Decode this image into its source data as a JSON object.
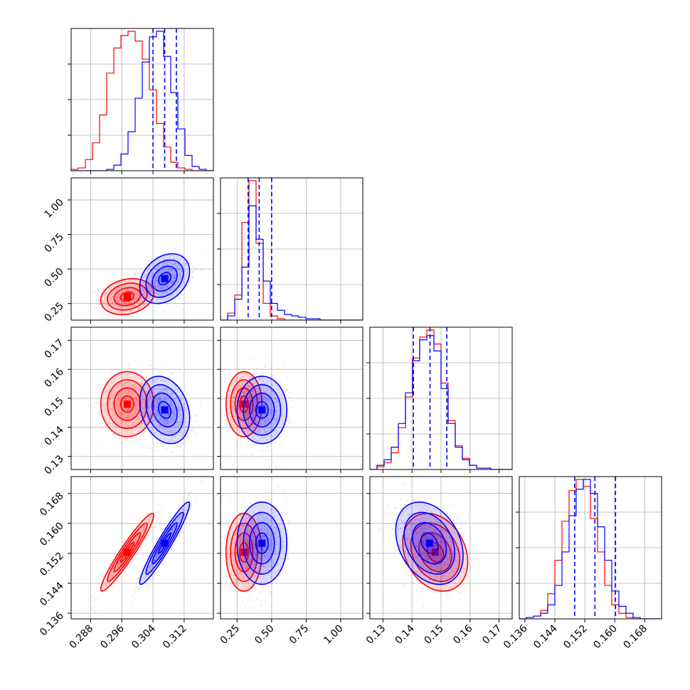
{
  "chart_data": {
    "type": "scatter",
    "subtype": "corner-plot",
    "grid": true,
    "colors": {
      "model_a": "#ff0000",
      "model_b": "#0000ff"
    },
    "parameters": [
      {
        "range": [
          0.283,
          0.3195
        ],
        "ticks": [
          "0.288",
          "0.296",
          "0.304",
          "0.312"
        ],
        "tick_values": [
          0.288,
          0.296,
          0.304,
          0.312
        ]
      },
      {
        "range": [
          0.13,
          1.16
        ],
        "ticks": [
          "0.25",
          "0.50",
          "0.75",
          "1.00"
        ],
        "tick_values": [
          0.25,
          0.5,
          0.75,
          1.0
        ]
      },
      {
        "range": [
          0.1255,
          0.1745
        ],
        "ticks": [
          "0.13",
          "0.14",
          "0.15",
          "0.16",
          "0.17"
        ],
        "tick_values": [
          0.13,
          0.14,
          0.15,
          0.16,
          0.17
        ]
      },
      {
        "range": [
          0.1345,
          0.1725
        ],
        "ticks": [
          "0.136",
          "0.144",
          "0.152",
          "0.160",
          "0.168"
        ],
        "tick_values": [
          0.136,
          0.144,
          0.152,
          0.16,
          0.168
        ]
      }
    ],
    "series": [
      {
        "color": "#ff0000",
        "mean": [
          0.2974,
          0.3,
          0.148,
          0.1523
        ],
        "std": [
          0.0034,
          0.065,
          0.0056,
          0.0052
        ],
        "correlation": [
          [
            1.0,
            0.2,
            0.0,
            0.95
          ],
          [
            0.2,
            1.0,
            0.0,
            0.0
          ],
          [
            0.0,
            0.0,
            1.0,
            -0.25
          ],
          [
            0.95,
            0.0,
            -0.25,
            1.0
          ]
        ],
        "histograms": [
          [
            0.01,
            0.02,
            0.08,
            0.2,
            0.4,
            0.7,
            0.88,
            0.97,
            1.0,
            0.93,
            0.8,
            0.58,
            0.34,
            0.17,
            0.06,
            0.02,
            0.01,
            0.0,
            0.0,
            0.0
          ],
          [
            0.0,
            0.05,
            0.18,
            0.7,
            1.0,
            0.55,
            0.12,
            0.03,
            0.01,
            0.0,
            0.0,
            0.0,
            0.0,
            0.0,
            0.0,
            0.0,
            0.0,
            0.0,
            0.0,
            0.0
          ],
          [
            0.0,
            0.02,
            0.05,
            0.12,
            0.3,
            0.52,
            0.8,
            0.95,
            1.0,
            0.9,
            0.62,
            0.35,
            0.17,
            0.08,
            0.03,
            0.01,
            0.01,
            0.0,
            0.0,
            0.0
          ],
          [
            0.0,
            0.01,
            0.02,
            0.06,
            0.18,
            0.42,
            0.7,
            0.92,
            1.0,
            0.95,
            0.72,
            0.48,
            0.24,
            0.1,
            0.04,
            0.01,
            0.0,
            0.0,
            0.0,
            0.0
          ]
        ]
      },
      {
        "color": "#0000ff",
        "mean": [
          0.307,
          0.43,
          0.146,
          0.1547
        ],
        "std": [
          0.0032,
          0.09,
          0.0058,
          0.0055
        ],
        "correlation": [
          [
            1.0,
            0.3,
            -0.25,
            0.95
          ],
          [
            0.3,
            1.0,
            0.0,
            0.0
          ],
          [
            -0.25,
            0.0,
            1.0,
            -0.3
          ],
          [
            0.95,
            0.0,
            -0.3,
            1.0
          ]
        ],
        "histograms": [
          [
            0.0,
            0.0,
            0.0,
            0.0,
            0.0,
            0.01,
            0.04,
            0.12,
            0.28,
            0.52,
            0.78,
            0.96,
            1.0,
            0.82,
            0.56,
            0.3,
            0.11,
            0.03,
            0.01,
            0.0
          ],
          [
            0.0,
            0.03,
            0.15,
            0.38,
            0.82,
            0.58,
            0.28,
            0.12,
            0.07,
            0.04,
            0.03,
            0.02,
            0.01,
            0.01,
            0.0,
            0.0,
            0.0,
            0.0,
            0.0,
            0.0
          ],
          [
            0.0,
            0.03,
            0.07,
            0.16,
            0.33,
            0.55,
            0.78,
            0.93,
            0.96,
            0.85,
            0.58,
            0.33,
            0.16,
            0.07,
            0.03,
            0.01,
            0.01,
            0.0,
            0.0,
            0.0
          ],
          [
            0.0,
            0.01,
            0.02,
            0.04,
            0.1,
            0.24,
            0.48,
            0.74,
            0.93,
            1.0,
            0.9,
            0.66,
            0.42,
            0.2,
            0.09,
            0.04,
            0.01,
            0.0,
            0.0,
            0.0
          ]
        ],
        "quantiles": [
          [
            0.304,
            0.307,
            0.31
          ],
          [
            0.33,
            0.41,
            0.5
          ],
          [
            0.1405,
            0.1462,
            0.152
          ],
          [
            0.1493,
            0.1547,
            0.1602
          ]
        ]
      }
    ]
  }
}
